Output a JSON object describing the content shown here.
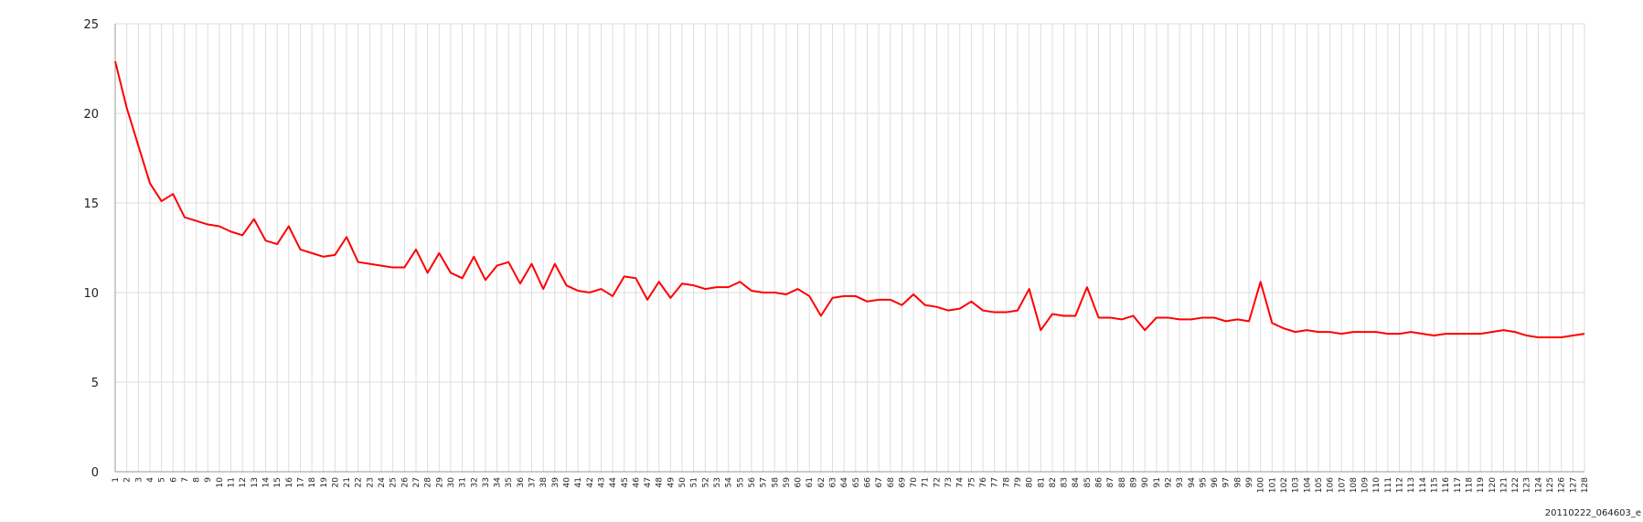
{
  "chart_data": {
    "type": "line",
    "title": "",
    "xlabel": "",
    "ylabel": "",
    "ylim": [
      0,
      25
    ],
    "yticks": [
      0,
      5,
      10,
      15,
      20,
      25
    ],
    "grid": true,
    "legend": "none",
    "x": [
      1,
      2,
      3,
      4,
      5,
      6,
      7,
      8,
      9,
      10,
      11,
      12,
      13,
      14,
      15,
      16,
      17,
      18,
      19,
      20,
      21,
      22,
      23,
      24,
      25,
      26,
      27,
      28,
      29,
      30,
      31,
      32,
      33,
      34,
      35,
      36,
      37,
      38,
      39,
      40,
      41,
      42,
      43,
      44,
      45,
      46,
      47,
      48,
      49,
      50,
      51,
      52,
      53,
      54,
      55,
      56,
      57,
      58,
      59,
      60,
      61,
      62,
      63,
      64,
      65,
      66,
      67,
      68,
      69,
      70,
      71,
      72,
      73,
      74,
      75,
      76,
      77,
      78,
      79,
      80,
      81,
      82,
      83,
      84,
      85,
      86,
      87,
      88,
      89,
      90,
      91,
      92,
      93,
      94,
      95,
      96,
      97,
      98,
      99,
      100,
      101,
      102,
      103,
      104,
      105,
      106,
      107,
      108,
      109,
      110,
      111,
      112,
      113,
      114,
      115,
      116,
      117,
      118,
      119,
      120,
      121,
      122,
      123,
      124,
      125,
      126,
      127,
      128
    ],
    "series": [
      {
        "color": "#ff0000",
        "values": [
          22.9,
          20.3,
          18.2,
          16.1,
          15.1,
          15.5,
          14.2,
          14.0,
          13.8,
          13.7,
          13.4,
          13.2,
          14.1,
          12.9,
          12.7,
          13.7,
          12.4,
          12.2,
          12.0,
          12.1,
          13.1,
          11.7,
          11.6,
          11.5,
          11.4,
          11.4,
          12.4,
          11.1,
          12.2,
          11.1,
          10.8,
          12.0,
          10.7,
          11.5,
          11.7,
          10.5,
          11.6,
          10.2,
          11.6,
          10.4,
          10.1,
          10.0,
          10.2,
          9.8,
          10.9,
          10.8,
          9.6,
          10.6,
          9.7,
          10.5,
          10.4,
          10.2,
          10.3,
          10.3,
          10.6,
          10.1,
          10.0,
          10.0,
          9.9,
          10.2,
          9.8,
          8.7,
          9.7,
          9.8,
          9.8,
          9.5,
          9.6,
          9.6,
          9.3,
          9.9,
          9.3,
          9.2,
          9.0,
          9.1,
          9.5,
          9.0,
          8.9,
          8.9,
          9.0,
          10.2,
          7.9,
          8.8,
          8.7,
          8.7,
          10.3,
          8.6,
          8.6,
          8.5,
          8.7,
          7.9,
          8.6,
          8.6,
          8.5,
          8.5,
          8.6,
          8.6,
          8.4,
          8.5,
          8.4,
          10.6,
          8.3,
          8.0,
          7.8,
          7.9,
          7.8,
          7.8,
          7.7,
          7.8,
          7.8,
          7.8,
          7.7,
          7.7,
          7.8,
          7.7,
          7.6,
          7.7,
          7.7,
          7.7,
          7.7,
          7.8,
          7.9,
          7.8,
          7.6,
          7.5,
          7.5,
          7.5,
          7.6,
          7.7
        ]
      }
    ]
  },
  "footer": {
    "label": "20110222_064603_e"
  }
}
